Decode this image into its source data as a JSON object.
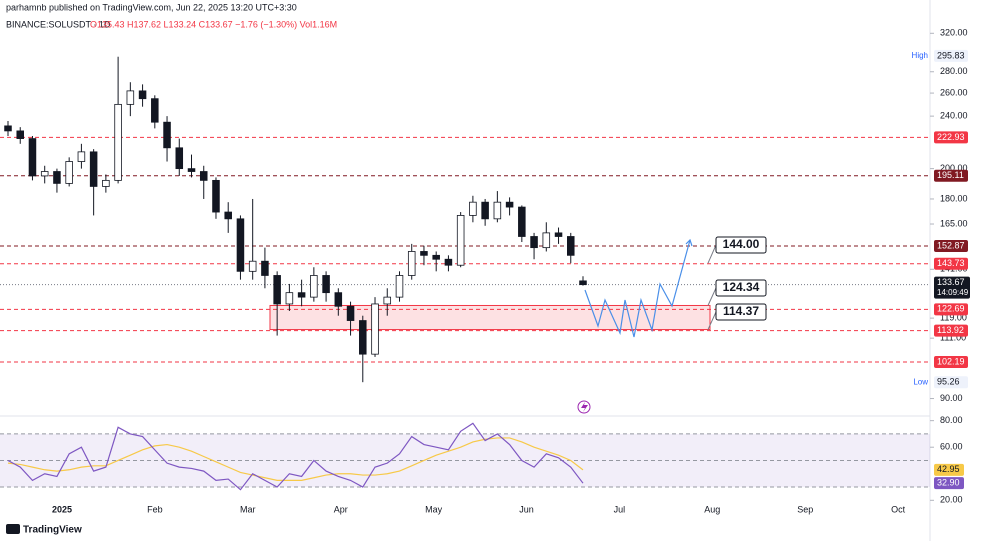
{
  "header": {
    "publisher": "parhamnb published on TradingView.com, Jun 22, 2025 13:20 UTC+3:30",
    "brand": "TradingView"
  },
  "chart_data": [
    {
      "type": "candlestick",
      "symbol": "BINANCE:SOLUSDT · 1D",
      "ohlc_text": "O135.43 H137.62 L133.24 C133.67 −1.76 (−1.30%) Vol1.16M",
      "up_color": "#ffffff",
      "down_color": "#131722",
      "log_scale": true,
      "ylim": [
        85,
        341
      ],
      "yticks": [
        {
          "value": 320,
          "label": "320.00"
        },
        {
          "value": 280,
          "label": "280.00"
        },
        {
          "value": 260,
          "label": "260.00"
        },
        {
          "value": 240,
          "label": "240.00"
        },
        {
          "value": 200,
          "label": "200.00"
        },
        {
          "value": 180,
          "label": "180.00"
        },
        {
          "value": 165,
          "label": "165.00"
        },
        {
          "value": 141,
          "label": "141.00"
        },
        {
          "value": 119,
          "label": "119.00"
        },
        {
          "value": 111,
          "label": "111.00"
        },
        {
          "value": 90,
          "label": "90.00"
        }
      ],
      "x_labels": [
        "2025",
        "Feb",
        "Mar",
        "Apr",
        "May",
        "Jun",
        "Jul",
        "Aug",
        "Sep",
        "Oct"
      ],
      "candles": [
        [
          232,
          236,
          224,
          228
        ],
        [
          228,
          231,
          218,
          222
        ],
        [
          222,
          224,
          192,
          195
        ],
        [
          195,
          202,
          190,
          198
        ],
        [
          198,
          200,
          184,
          190
        ],
        [
          190,
          208,
          188,
          205
        ],
        [
          205,
          218,
          200,
          212
        ],
        [
          212,
          214,
          170,
          188
        ],
        [
          188,
          196,
          184,
          192
        ],
        [
          192,
          295,
          190,
          250
        ],
        [
          250,
          270,
          240,
          262
        ],
        [
          262,
          268,
          248,
          255
        ],
        [
          255,
          258,
          230,
          235
        ],
        [
          235,
          240,
          205,
          215
        ],
        [
          215,
          222,
          195,
          200
        ],
        [
          200,
          210,
          194,
          198
        ],
        [
          198,
          202,
          180,
          192
        ],
        [
          192,
          194,
          168,
          172
        ],
        [
          172,
          178,
          160,
          168
        ],
        [
          168,
          170,
          136,
          140
        ],
        [
          140,
          180,
          136,
          145
        ],
        [
          145,
          152,
          132,
          138
        ],
        [
          138,
          140,
          112,
          125
        ],
        [
          125,
          134,
          122,
          130
        ],
        [
          130,
          136,
          124,
          128
        ],
        [
          128,
          142,
          126,
          138
        ],
        [
          138,
          140,
          126,
          130
        ],
        [
          130,
          132,
          120,
          124
        ],
        [
          124,
          126,
          112,
          118
        ],
        [
          118,
          120,
          95.26,
          105
        ],
        [
          105,
          128,
          104,
          125
        ],
        [
          125,
          132,
          120,
          128
        ],
        [
          128,
          140,
          126,
          138
        ],
        [
          138,
          154,
          136,
          150
        ],
        [
          150,
          153,
          143,
          148
        ],
        [
          148,
          150,
          140,
          146
        ],
        [
          146,
          148,
          140,
          143
        ],
        [
          143,
          172,
          142,
          170
        ],
        [
          170,
          182,
          166,
          178
        ],
        [
          178,
          180,
          164,
          168
        ],
        [
          168,
          185,
          166,
          178
        ],
        [
          178,
          181,
          170,
          175
        ],
        [
          175,
          176,
          155,
          158
        ],
        [
          158,
          160,
          146,
          152
        ],
        [
          152,
          166,
          150,
          160
        ],
        [
          160,
          163,
          154,
          158
        ],
        [
          158,
          160,
          144,
          148
        ],
        [
          135.43,
          137.62,
          133.24,
          133.67
        ]
      ],
      "levels": [
        222.93,
        195.11,
        152.87,
        143.73,
        122.69,
        113.92,
        102.19
      ],
      "level_colors": [
        "#f23645",
        "#801922",
        "#801922",
        "#f23645",
        "#f23645",
        "#f23645",
        "#f23645"
      ],
      "current": {
        "value": 133.67,
        "countdown": "14:09:49"
      },
      "high": {
        "label": "High",
        "value": 295.83
      },
      "low": {
        "label": "Low",
        "value": 95.26
      },
      "zone": {
        "top": 124.34,
        "bottom": 114.37
      },
      "target": {
        "value": 144,
        "label": "144.00"
      }
    },
    {
      "type": "line",
      "ylim": [
        24,
        82
      ],
      "yticks": [
        {
          "value": 80,
          "label": "80.00"
        },
        {
          "value": 60,
          "label": "60.00"
        },
        {
          "value": 20,
          "label": "20.00"
        }
      ],
      "bands": [
        70,
        50,
        30
      ],
      "series": [
        {
          "color": "#7e57c2",
          "last_label": "32.90",
          "values": [
            50,
            45,
            35,
            40,
            38,
            55,
            60,
            42,
            45,
            75,
            70,
            68,
            58,
            48,
            45,
            44,
            42,
            35,
            36,
            28,
            40,
            35,
            30,
            40,
            38,
            50,
            42,
            38,
            35,
            30,
            45,
            48,
            55,
            68,
            62,
            60,
            58,
            72,
            78,
            65,
            70,
            62,
            50,
            45,
            55,
            52,
            45,
            32.9
          ]
        },
        {
          "color": "#f7c948",
          "last_label": "42.95",
          "values": [
            48,
            47,
            45,
            43,
            42,
            43,
            45,
            46,
            46,
            50,
            54,
            58,
            61,
            62,
            60,
            57,
            53,
            49,
            45,
            41,
            39,
            37,
            35,
            35,
            35,
            37,
            39,
            40,
            40,
            39,
            39,
            40,
            42,
            46,
            50,
            54,
            57,
            60,
            64,
            66,
            67,
            67,
            64,
            60,
            57,
            54,
            50,
            42.95
          ]
        }
      ]
    }
  ]
}
